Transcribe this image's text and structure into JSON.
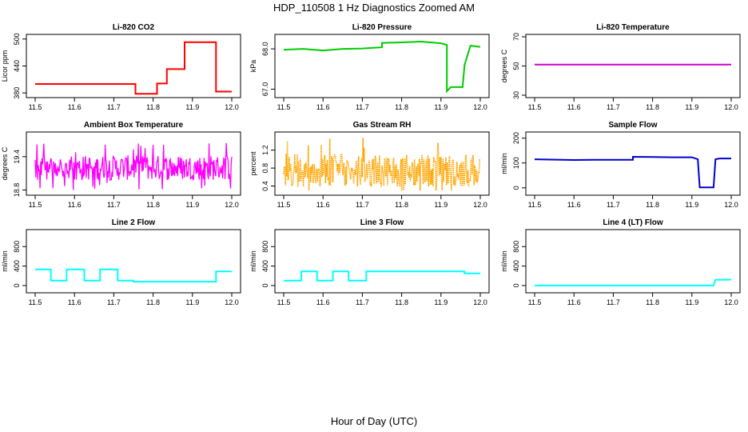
{
  "title": "HDP_110508  1 Hz Diagnostics Zoomed AM",
  "xlabel": "Hour of Day (UTC)",
  "chart_data": [
    {
      "type": "line",
      "title": "Li-820 CO2",
      "ylabel": "Licor ppm",
      "color": "#ff0000",
      "xlim": [
        11.5,
        12.0
      ],
      "ylim": [
        375,
        505
      ],
      "xticks": [
        "11.5",
        "11.6",
        "11.7",
        "11.8",
        "11.9",
        "12.0"
      ],
      "yticks": [
        "380",
        "440",
        "500"
      ],
      "ytick_values": [
        380,
        440,
        500
      ],
      "x": [
        11.5,
        11.755,
        11.755,
        11.81,
        11.81,
        11.835,
        11.835,
        11.88,
        11.88,
        11.96,
        11.96,
        12.0
      ],
      "y": [
        400,
        400,
        378,
        378,
        401,
        401,
        433,
        433,
        493,
        493,
        383,
        383
      ]
    },
    {
      "type": "line",
      "title": "Li-820 Pressure",
      "ylabel": "kPa",
      "color": "#00cc00",
      "xlim": [
        11.5,
        12.0
      ],
      "ylim": [
        66.85,
        68.3
      ],
      "xticks": [
        "11.5",
        "11.6",
        "11.7",
        "11.8",
        "11.9",
        "12.0"
      ],
      "yticks": [
        "67.0",
        "68.0"
      ],
      "ytick_values": [
        67.0,
        68.0
      ],
      "x": [
        11.5,
        11.55,
        11.6,
        11.65,
        11.7,
        11.75,
        11.75,
        11.8,
        11.85,
        11.9,
        11.915,
        11.915,
        11.925,
        11.955,
        11.96,
        11.975,
        12.0
      ],
      "y": [
        67.98,
        68.0,
        67.96,
        68.0,
        68.01,
        68.04,
        68.15,
        68.16,
        68.18,
        68.14,
        68.1,
        66.95,
        67.05,
        67.05,
        67.6,
        68.08,
        68.05
      ]
    },
    {
      "type": "line",
      "title": "Li-820 Temperature",
      "ylabel": "degrees C",
      "color": "#cc00cc",
      "xlim": [
        11.5,
        12.0
      ],
      "ylim": [
        30,
        70
      ],
      "xticks": [
        "11.5",
        "11.6",
        "11.7",
        "11.8",
        "11.9",
        "12.0"
      ],
      "yticks": [
        "30",
        "50",
        "70"
      ],
      "ytick_values": [
        30,
        50,
        70
      ],
      "x": [
        11.5,
        12.0
      ],
      "y": [
        51,
        51
      ]
    },
    {
      "type": "line",
      "title": "Ambient Box Temperature",
      "ylabel": "degrees C",
      "color": "#ff00ff",
      "noise": true,
      "xlim": [
        11.5,
        12.0
      ],
      "ylim": [
        18.75,
        19.8
      ],
      "xticks": [
        "11.5",
        "11.6",
        "11.7",
        "11.8",
        "11.9",
        "12.0"
      ],
      "yticks": [
        "18.8",
        "19.4"
      ],
      "ytick_values": [
        18.8,
        19.4
      ],
      "center": 19.2,
      "spread": 0.45,
      "min": 18.8,
      "max": 19.7
    },
    {
      "type": "scatter",
      "title": "Gas Stream RH",
      "ylabel": "percent",
      "color": "#ffa500",
      "noise": true,
      "xlim": [
        11.5,
        12.0
      ],
      "ylim": [
        0.25,
        1.55
      ],
      "xticks": [
        "11.5",
        "11.6",
        "11.7",
        "11.8",
        "11.9",
        "12.0"
      ],
      "yticks": [
        "0.4",
        "0.8",
        "1.2"
      ],
      "ytick_values": [
        0.4,
        0.8,
        1.2
      ],
      "center": 0.75,
      "spread": 0.75,
      "min": 0.3,
      "max": 1.5
    },
    {
      "type": "line",
      "title": "Sample Flow",
      "ylabel": "ml/min",
      "color": "#0000cc",
      "xlim": [
        11.5,
        12.0
      ],
      "ylim": [
        -20,
        215
      ],
      "xticks": [
        "11.5",
        "11.6",
        "11.7",
        "11.8",
        "11.9",
        "12.0"
      ],
      "yticks": [
        "0",
        "100",
        "200"
      ],
      "ytick_values": [
        0,
        100,
        200
      ],
      "x": [
        11.5,
        11.6,
        11.65,
        11.75,
        11.75,
        11.8,
        11.85,
        11.9,
        11.915,
        11.92,
        11.955,
        11.96,
        11.97,
        12.0
      ],
      "y": [
        115,
        112,
        113,
        113,
        125,
        124,
        123,
        123,
        115,
        2,
        2,
        115,
        118,
        118
      ]
    },
    {
      "type": "line",
      "title": "Line 2 Flow",
      "ylabel": "ml/min",
      "color": "#00ffff",
      "xlim": [
        11.5,
        12.0
      ],
      "ylim": [
        -100,
        1100
      ],
      "xticks": [
        "11.5",
        "11.6",
        "11.7",
        "11.8",
        "11.9",
        "12.0"
      ],
      "yticks": [
        "0",
        "400",
        "800"
      ],
      "ytick_values": [
        0,
        400,
        800
      ],
      "x": [
        11.5,
        11.54,
        11.54,
        11.58,
        11.58,
        11.625,
        11.625,
        11.665,
        11.665,
        11.71,
        11.71,
        11.75,
        11.75,
        11.96,
        11.96,
        12.0
      ],
      "y": [
        330,
        330,
        100,
        100,
        330,
        330,
        100,
        100,
        330,
        330,
        100,
        100,
        80,
        80,
        290,
        290
      ]
    },
    {
      "type": "line",
      "title": "Line 3 Flow",
      "ylabel": "ml/min",
      "color": "#00ffff",
      "xlim": [
        11.5,
        12.0
      ],
      "ylim": [
        -100,
        1100
      ],
      "xticks": [
        "11.5",
        "11.6",
        "11.7",
        "11.8",
        "11.9",
        "12.0"
      ],
      "yticks": [
        "0",
        "400",
        "800"
      ],
      "ytick_values": [
        0,
        400,
        800
      ],
      "x": [
        11.5,
        11.545,
        11.545,
        11.585,
        11.585,
        11.625,
        11.625,
        11.665,
        11.665,
        11.71,
        11.71,
        11.96,
        11.96,
        12.0
      ],
      "y": [
        100,
        100,
        290,
        290,
        100,
        100,
        290,
        290,
        100,
        100,
        290,
        290,
        250,
        250
      ]
    },
    {
      "type": "line",
      "title": "Line 4 (LT) Flow",
      "ylabel": "ml/min",
      "color": "#00ffff",
      "xlim": [
        11.5,
        12.0
      ],
      "ylim": [
        -100,
        1100
      ],
      "xticks": [
        "11.5",
        "11.6",
        "11.7",
        "11.8",
        "11.9",
        "12.0"
      ],
      "yticks": [
        "0",
        "400",
        "800"
      ],
      "ytick_values": [
        0,
        400,
        800
      ],
      "x": [
        11.5,
        11.955,
        11.96,
        12.0
      ],
      "y": [
        0,
        0,
        120,
        120
      ]
    }
  ]
}
